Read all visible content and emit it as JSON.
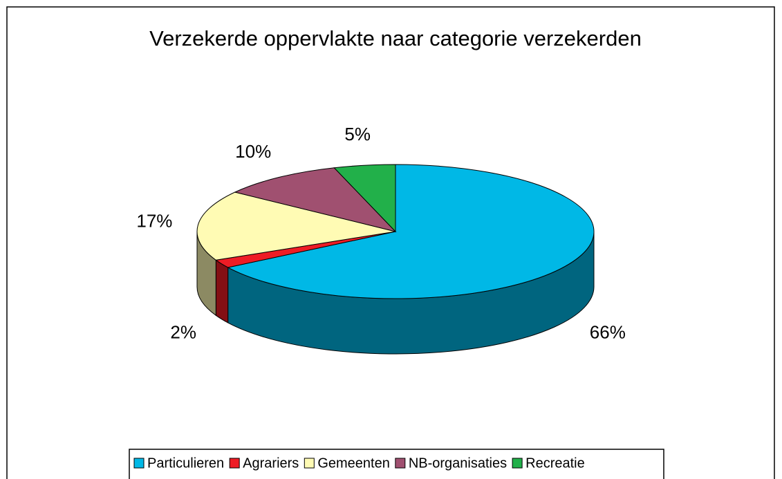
{
  "chart_data": {
    "type": "pie",
    "title": "Verzekerde oppervlakte naar categorie verzekerden",
    "categories": [
      "Particulieren",
      "Agrariers",
      "Gemeenten",
      "NB-organisaties",
      "Recreatie"
    ],
    "values": [
      66,
      2,
      17,
      10,
      5
    ],
    "value_labels": [
      "66%",
      "2%",
      "17%",
      "10%",
      "5%"
    ],
    "colors": [
      "#00b8e6",
      "#ee1c25",
      "#fffbb4",
      "#a05070",
      "#22b04a"
    ],
    "legend": "bottom"
  }
}
